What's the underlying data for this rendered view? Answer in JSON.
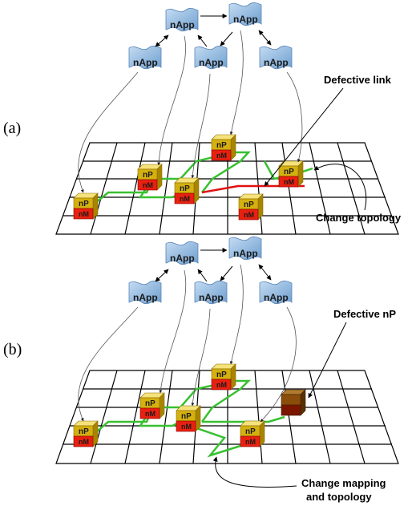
{
  "panels": [
    {
      "label": "(a)",
      "app_label": "nApp",
      "np_label": "nP",
      "nm_label": "nM",
      "annotations": {
        "defect": "Defective link",
        "change": "Change topology"
      }
    },
    {
      "label": "(b)",
      "app_label": "nApp",
      "np_label": "nP",
      "nm_label": "nM",
      "annotations": {
        "defect": "Defective nP",
        "change_line1": "Change mapping",
        "change_line2": "and topology"
      }
    }
  ],
  "colors": {
    "app_cloud": "#8fb8e0",
    "np_top": "#f0d040",
    "np_front": "#c9a800",
    "nm": "#e82010",
    "defective_np": "#8b4d0a",
    "active_link": "#38c030",
    "defective_link": "#e01010",
    "grid": "#000000"
  }
}
